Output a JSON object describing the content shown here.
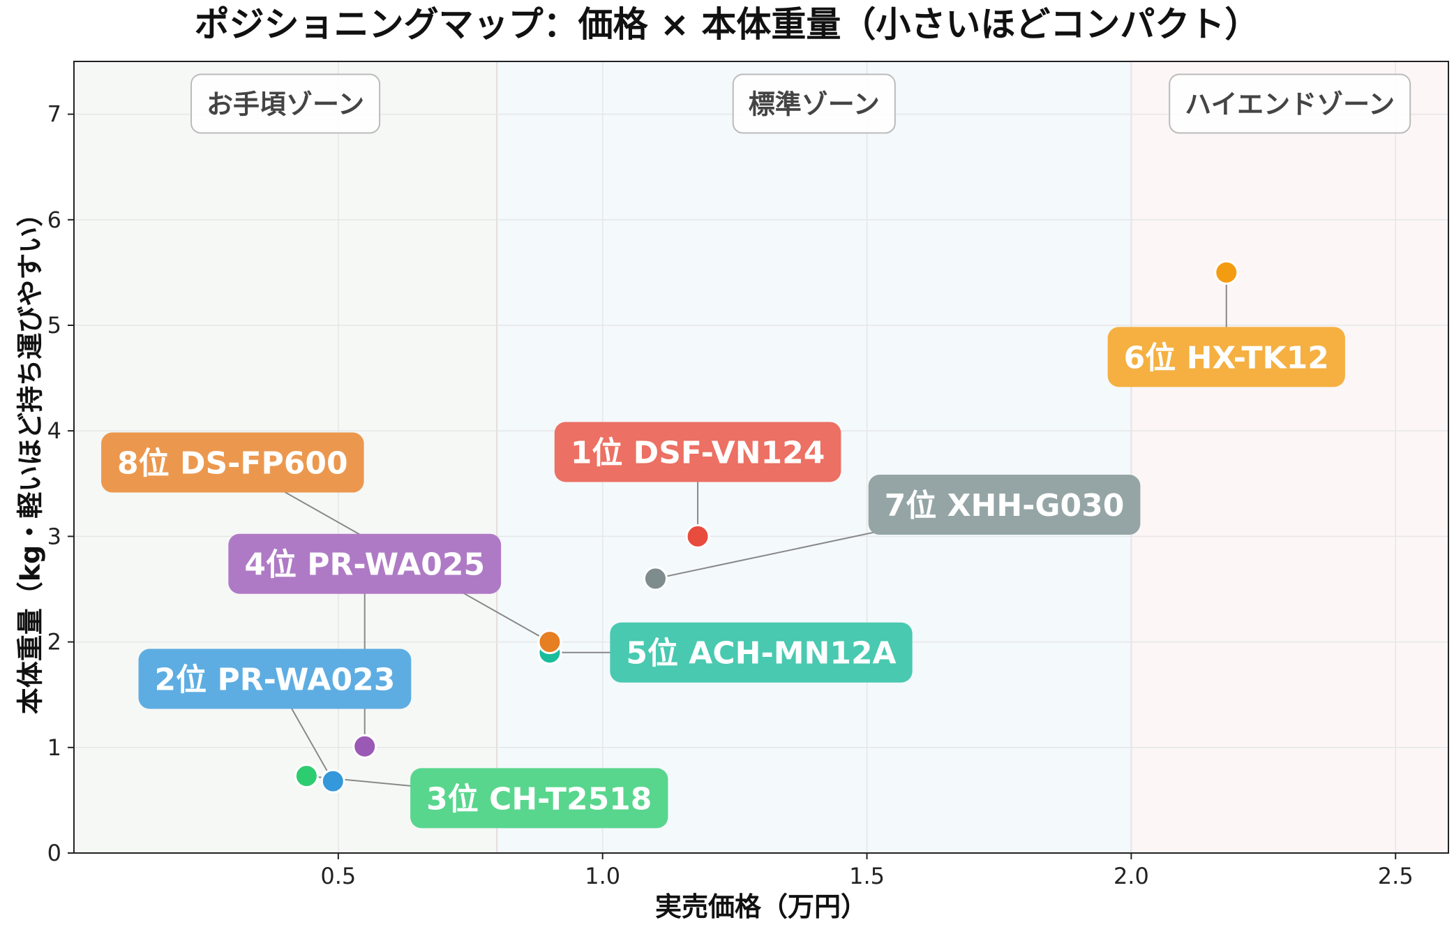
{
  "chart_data": {
    "type": "scatter",
    "title": "ポジショニングマップ：価格 × 本体重量（小さいほどコンパクト）",
    "xlabel": "実売価格（万円）",
    "ylabel": "本体重量（kg・軽いほど持ち運びやすい）",
    "xlim": [
      0.0,
      2.6
    ],
    "ylim": [
      0,
      7.5
    ],
    "xticks": [
      0.5,
      1.0,
      1.5,
      2.0,
      2.5
    ],
    "xtick_labels": [
      "0.5",
      "1.0",
      "1.5",
      "2.0",
      "2.5"
    ],
    "yticks": [
      0,
      1,
      2,
      3,
      4,
      5,
      6,
      7
    ],
    "ytick_labels": [
      "0",
      "1",
      "2",
      "3",
      "4",
      "5",
      "6",
      "7"
    ],
    "grid": true,
    "zones": [
      {
        "label": "お手頃ゾーン",
        "x_start": 0.0,
        "x_end": 0.8,
        "color": "#f6f8f6"
      },
      {
        "label": "標準ゾーン",
        "x_start": 0.8,
        "x_end": 2.0,
        "color": "#f4f9fc"
      },
      {
        "label": "ハイエンドゾーン",
        "x_start": 2.0,
        "x_end": 2.6,
        "color": "#fcf6f7"
      }
    ],
    "points": [
      {
        "label": "1位 DSF-VN124",
        "x": 1.18,
        "y": 3.0,
        "color": "#e74c3c",
        "label_color": "#ec7063",
        "label_x": 1.18,
        "label_y": 3.8
      },
      {
        "label": "2位 PR-WA023",
        "x": 0.49,
        "y": 0.68,
        "color": "#3498db",
        "label_color": "#5dade2",
        "label_x": 0.38,
        "label_y": 1.65
      },
      {
        "label": "3位 CH-T2518",
        "x": 0.44,
        "y": 0.73,
        "color": "#2ecc71",
        "label_color": "#58d68d",
        "label_x": 0.88,
        "label_y": 0.52
      },
      {
        "label": "4位 PR-WA025",
        "x": 0.55,
        "y": 1.01,
        "color": "#9b59b6",
        "label_color": "#af7ac5",
        "label_x": 0.55,
        "label_y": 2.74
      },
      {
        "label": "5位 ACH-MN12A",
        "x": 0.9,
        "y": 1.9,
        "color": "#1abc9c",
        "label_color": "#48c9b0",
        "label_x": 1.3,
        "label_y": 1.9
      },
      {
        "label": "6位 HX-TK12",
        "x": 2.18,
        "y": 5.5,
        "color": "#f39c12",
        "label_color": "#f5b041",
        "label_x": 2.18,
        "label_y": 4.7
      },
      {
        "label": "7位 XHH-G030",
        "x": 1.1,
        "y": 2.6,
        "color": "#7f8c8d",
        "label_color": "#95a5a6",
        "label_x": 1.76,
        "label_y": 3.3
      },
      {
        "label": "8位 DS-FP600",
        "x": 0.9,
        "y": 2.0,
        "color": "#e67e22",
        "label_color": "#eb984e",
        "label_x": 0.3,
        "label_y": 3.7
      }
    ]
  }
}
